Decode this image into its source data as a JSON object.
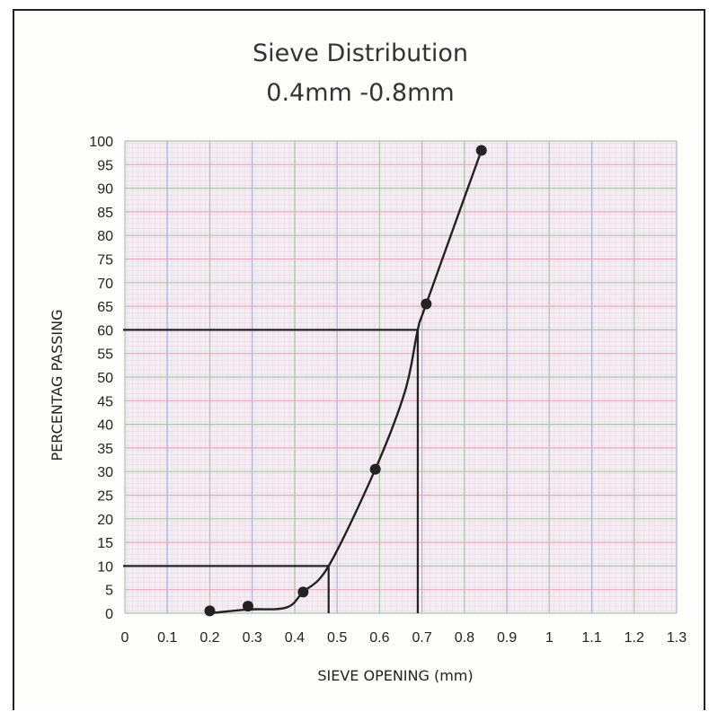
{
  "chart_data": {
    "type": "scatter",
    "title": "Sieve Distribution",
    "subtitle": "0.4mm -0.8mm",
    "xlabel": "SIEVE OPENING (mm)",
    "ylabel": "PERCENTAG PASSING",
    "xlim": [
      0,
      1.3
    ],
    "ylim": [
      0,
      100
    ],
    "x_ticks": [
      "0",
      "0.1",
      "0.2",
      "0.3",
      "0.4",
      "0.5",
      "0.6",
      "0.7",
      "0.8",
      "0.9",
      "1",
      "1.1",
      "1.2",
      "1.3"
    ],
    "y_ticks": [
      "0",
      "5",
      "10",
      "15",
      "20",
      "25",
      "30",
      "35",
      "40",
      "45",
      "50",
      "55",
      "60",
      "65",
      "70",
      "75",
      "80",
      "85",
      "90",
      "95",
      "100"
    ],
    "grid": true,
    "series": [
      {
        "points": [
          {
            "x": 0.2,
            "y": 0.5
          },
          {
            "x": 0.29,
            "y": 1.5
          },
          {
            "x": 0.42,
            "y": 4.5
          },
          {
            "x": 0.59,
            "y": 30.5
          },
          {
            "x": 0.71,
            "y": 65.5
          },
          {
            "x": 0.84,
            "y": 98
          }
        ]
      }
    ],
    "curve": [
      [
        0.2,
        0
      ],
      [
        0.29,
        0.8
      ],
      [
        0.38,
        1.2
      ],
      [
        0.42,
        4.5
      ],
      [
        0.48,
        10
      ],
      [
        0.59,
        30.5
      ],
      [
        0.66,
        47
      ],
      [
        0.69,
        60
      ],
      [
        0.71,
        65.5
      ],
      [
        0.84,
        98
      ]
    ],
    "reference_lines": [
      {
        "y": 10,
        "x": 0.48
      },
      {
        "y": 60,
        "x": 0.69
      }
    ],
    "colors": {
      "line": "#222222",
      "grid_red": "#e8a8b8",
      "grid_green": "#a8c8a8",
      "grid_blue": "#a8b0d8"
    }
  }
}
